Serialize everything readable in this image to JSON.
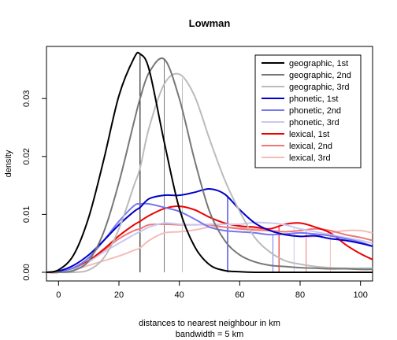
{
  "chart_data": {
    "type": "line",
    "title": "Lowman",
    "xlabel": "distances to nearest neighbour in km",
    "xlabel2": "bandwidth = 5 km",
    "ylabel": "density",
    "xlim": [
      -4,
      104
    ],
    "ylim": [
      -0.0015,
      0.039
    ],
    "x_ticks": [
      0,
      20,
      40,
      60,
      80,
      100
    ],
    "y_ticks": [
      0.0,
      0.01,
      0.02,
      0.03
    ],
    "y_tick_labels": [
      "0.00",
      "0.01",
      "0.02",
      "0.03"
    ],
    "legend_position": "top-right",
    "grid": false,
    "x": [
      -4,
      0,
      5,
      10,
      15,
      20,
      25,
      27,
      30,
      35,
      40,
      45,
      50,
      55,
      60,
      65,
      70,
      75,
      80,
      85,
      90,
      95,
      100,
      104
    ],
    "series": [
      {
        "name": "geographic, 1st",
        "color": "#000000",
        "width": 2,
        "marker_x": 27,
        "values": [
          0.0,
          0.0004,
          0.003,
          0.0095,
          0.0195,
          0.0305,
          0.037,
          0.0377,
          0.035,
          0.0225,
          0.011,
          0.0045,
          0.0013,
          0.0003,
          0.0001,
          0.0,
          0.0,
          0.0,
          0.0,
          0.0,
          0.0,
          0.0,
          0.0,
          0.0
        ]
      },
      {
        "name": "geographic, 2nd",
        "color": "#777777",
        "width": 2,
        "marker_x": 35,
        "values": [
          0.0,
          0.0,
          0.0003,
          0.002,
          0.007,
          0.0155,
          0.026,
          0.03,
          0.0345,
          0.0368,
          0.03,
          0.0195,
          0.0105,
          0.0055,
          0.003,
          0.0018,
          0.0012,
          0.001,
          0.0008,
          0.0007,
          0.0006,
          0.0006,
          0.0005,
          0.0005
        ]
      },
      {
        "name": "geographic, 3rd",
        "color": "#bbbbbb",
        "width": 2,
        "marker_x": 41,
        "values": [
          0.0,
          0.0,
          0.0,
          0.0004,
          0.0025,
          0.0075,
          0.015,
          0.018,
          0.025,
          0.0325,
          0.0342,
          0.0305,
          0.023,
          0.016,
          0.0105,
          0.006,
          0.0035,
          0.002,
          0.0014,
          0.001,
          0.0008,
          0.0007,
          0.0007,
          0.0007
        ]
      },
      {
        "name": "phonetic, 1st",
        "color": "#0000cc",
        "width": 2,
        "marker_x": 56,
        "values": [
          0.0,
          0.0002,
          0.0012,
          0.003,
          0.0055,
          0.0082,
          0.0105,
          0.0112,
          0.0127,
          0.0133,
          0.0133,
          0.0138,
          0.0144,
          0.0135,
          0.0108,
          0.0085,
          0.0072,
          0.0065,
          0.0062,
          0.0063,
          0.0058,
          0.0055,
          0.005,
          0.0045
        ]
      },
      {
        "name": "phonetic, 2nd",
        "color": "#7777ee",
        "width": 2,
        "marker_x": 71,
        "values": [
          0.0,
          0.0001,
          0.0008,
          0.0025,
          0.0055,
          0.0088,
          0.0115,
          0.0118,
          0.0118,
          0.0112,
          0.0105,
          0.0092,
          0.0078,
          0.0072,
          0.007,
          0.0068,
          0.0065,
          0.0066,
          0.0068,
          0.0066,
          0.0063,
          0.0058,
          0.0052,
          0.0045
        ]
      },
      {
        "name": "phonetic, 3rd",
        "color": "#c8c8f0",
        "width": 2,
        "marker_x": 78,
        "values": [
          0.0,
          0.0,
          0.0005,
          0.0018,
          0.0035,
          0.005,
          0.0065,
          0.007,
          0.0078,
          0.0085,
          0.0083,
          0.0082,
          0.0083,
          0.0083,
          0.0083,
          0.0086,
          0.0085,
          0.0082,
          0.0075,
          0.007,
          0.0065,
          0.006,
          0.0055,
          0.005
        ]
      },
      {
        "name": "lexical, 1st",
        "color": "#ee0000",
        "width": 2,
        "marker_x": 73,
        "values": [
          0.0,
          0.0,
          0.0006,
          0.002,
          0.004,
          0.0063,
          0.0082,
          0.0088,
          0.0098,
          0.011,
          0.0114,
          0.0108,
          0.0095,
          0.0085,
          0.008,
          0.0078,
          0.0075,
          0.0083,
          0.0085,
          0.0078,
          0.0068,
          0.0048,
          0.0032,
          0.0022
        ]
      },
      {
        "name": "lexical, 2nd",
        "color": "#f07777",
        "width": 2,
        "marker_x": 82,
        "values": [
          0.0,
          0.0,
          0.0005,
          0.0018,
          0.0038,
          0.0058,
          0.0072,
          0.0075,
          0.0082,
          0.0083,
          0.0082,
          0.0082,
          0.0082,
          0.0078,
          0.0075,
          0.0073,
          0.0072,
          0.007,
          0.0072,
          0.0075,
          0.0072,
          0.0065,
          0.006,
          0.0055
        ]
      },
      {
        "name": "lexical, 3rd",
        "color": "#f5bbbb",
        "width": 2,
        "marker_x": 90,
        "values": [
          0.0,
          0.0,
          0.0004,
          0.0012,
          0.002,
          0.0028,
          0.0038,
          0.0042,
          0.0055,
          0.0068,
          0.007,
          0.0073,
          0.0078,
          0.0078,
          0.0077,
          0.0076,
          0.0072,
          0.0065,
          0.0062,
          0.0062,
          0.0068,
          0.0072,
          0.0072,
          0.0068
        ]
      }
    ]
  }
}
